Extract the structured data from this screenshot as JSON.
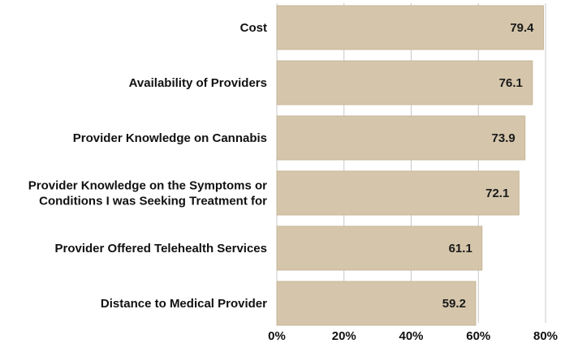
{
  "chart_data": {
    "type": "bar",
    "orientation": "horizontal",
    "title": "",
    "xlabel": "",
    "ylabel": "",
    "categories": [
      [
        "Cost"
      ],
      [
        "Availability of Providers"
      ],
      [
        "Provider Knowledge on Cannabis"
      ],
      [
        "Provider Knowledge on the Symptoms or",
        "Conditions I was Seeking Treatment for"
      ],
      [
        "Provider Offered Telehealth Services"
      ],
      [
        "Distance to Medical Provider"
      ]
    ],
    "values": [
      79.4,
      76.1,
      73.9,
      72.1,
      61.1,
      59.2
    ],
    "value_labels": [
      "79.4",
      "76.1",
      "73.9",
      "72.1",
      "61.1",
      "59.2"
    ],
    "xlim": [
      0,
      80
    ],
    "xticks": [
      0,
      20,
      40,
      60,
      80
    ],
    "xtick_labels": [
      "0%",
      "20%",
      "40%",
      "60%",
      "80%"
    ],
    "grid": true,
    "colors": {
      "bar": "#d5c6ab",
      "bar_edge": "#c6b597",
      "grid": "#c9c9c9",
      "text": "#111111"
    }
  }
}
